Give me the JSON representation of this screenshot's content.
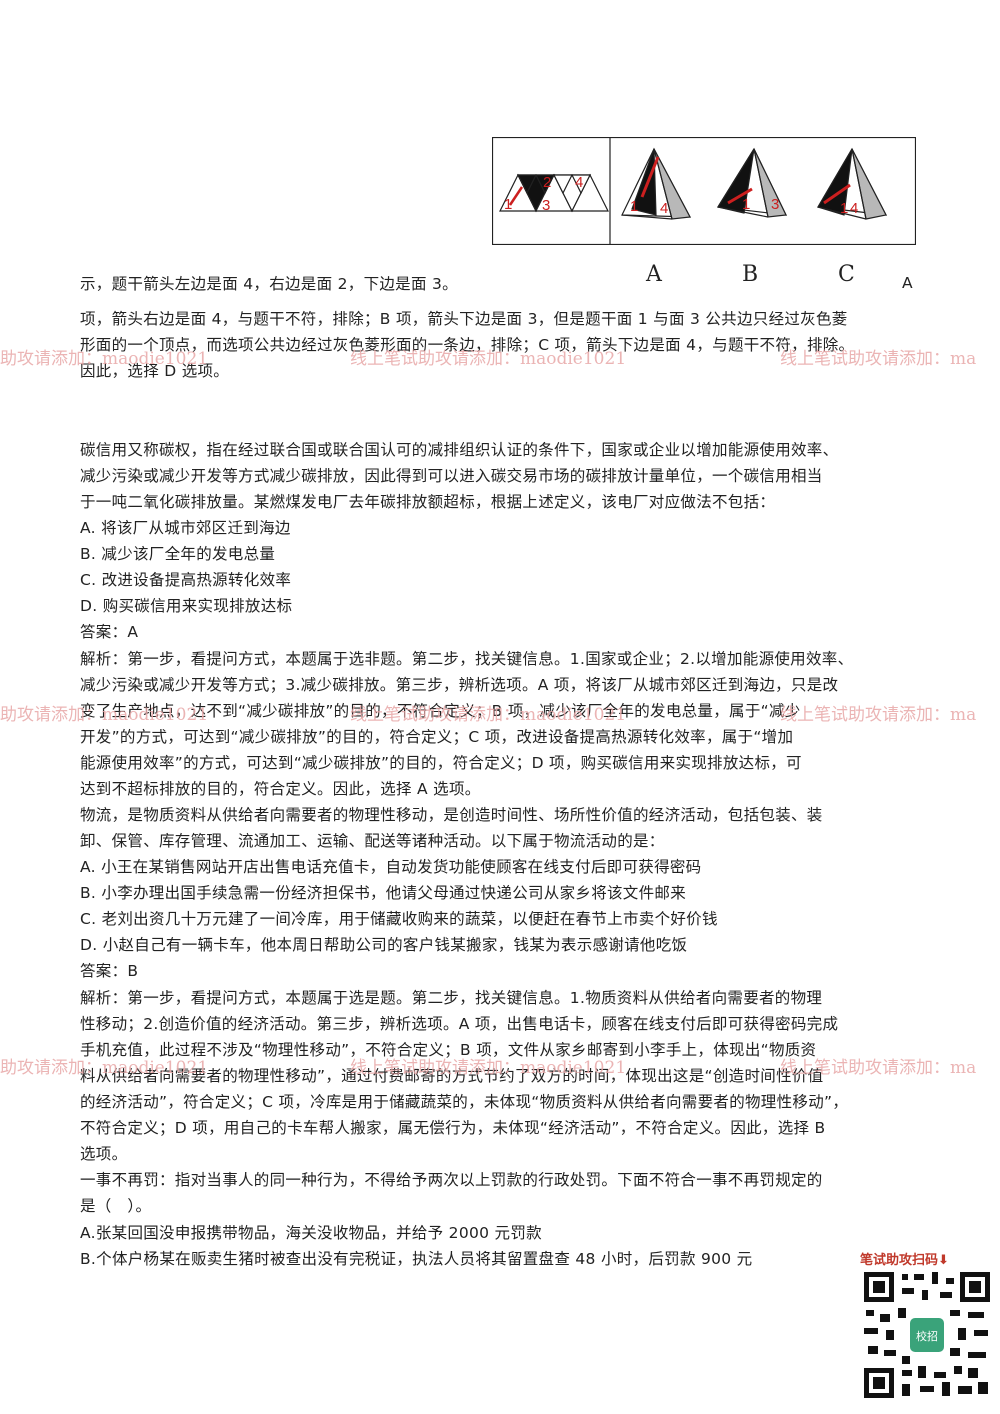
{
  "figure": {
    "option_labels": [
      "A",
      "B",
      "C"
    ],
    "stem_numbers": [
      "1",
      "2",
      "3",
      "4"
    ],
    "opt_a_numbers": [
      "1",
      "4"
    ],
    "opt_b_numbers": [
      "1",
      "3"
    ],
    "opt_c_numbers": [
      "1",
      "4"
    ]
  },
  "trailing_a": "A",
  "lines": [
    "示，题干箭头左边是面 4，右边是面 2，下边是面 3。",
    "项，箭头右边是面 4，与题干不符，排除；B 项，箭头下边是面 3，但是题干面 1 与面 3 公共边只经过灰色菱",
    "形面的一个顶点，而选项公共边经过灰色菱形面的一条边，排除；C 项，箭头下边是面 4，与题干不符，排除。",
    "因此，选择 D 选项。",
    "碳信用又称碳权，指在经过联合国或联合国认可的减排组织认证的条件下，国家或企业以增加能源使用效率、",
    "减少污染或减少开发等方式减少碳排放，因此得到可以进入碳交易市场的碳排放计量单位，一个碳信用相当",
    "于一吨二氧化碳排放量。某燃煤发电厂去年碳排放额超标，根据上述定义，该电厂对应做法不包括：",
    "A. 将该厂从城市郊区迁到海边",
    "B. 减少该厂全年的发电总量",
    "C. 改进设备提高热源转化效率",
    "D. 购买碳信用来实现排放达标",
    "答案：A",
    "解析：第一步，看提问方式，本题属于选非题。第二步，找关键信息。1.国家或企业；2.以增加能源使用效率、",
    "减少污染或减少开发等方式；3.减少碳排放。第三步，辨析选项。A 项，将该厂从城市郊区迁到海边，只是改",
    "变了生产地点，达不到“减少碳排放”的目的，不符合定义；B 项，减少该厂全年的发电总量，属于“减少",
    "开发”的方式，可达到“减少碳排放”的目的，符合定义；C 项，改进设备提高热源转化效率，属于“增加",
    "能源使用效率”的方式，可达到“减少碳排放”的目的，符合定义；D 项，购买碳信用来实现排放达标，可",
    "达到不超标排放的目的，符合定义。因此，选择 A 选项。",
    "物流，是物质资料从供给者向需要者的物理性移动，是创造时间性、场所性价值的经济活动，包括包装、装",
    "卸、保管、库存管理、流通加工、运输、配送等诸种活动。以下属于物流活动的是：",
    "A. 小王在某销售网站开店出售电话充值卡，自动发货功能使顾客在线支付后即可获得密码",
    "B. 小李办理出国手续急需一份经济担保书，他请父母通过快递公司从家乡将该文件邮来",
    "C. 老刘出资几十万元建了一间冷库，用于储藏收购来的蔬菜，以便赶在春节上市卖个好价钱",
    "D. 小赵自己有一辆卡车，他本周日帮助公司的客户钱某搬家，钱某为表示感谢请他吃饭",
    "答案：B",
    "解析：第一步，看提问方式，本题属于选是题。第二步，找关键信息。1.物质资料从供给者向需要者的物理",
    "性移动；2.创造价值的经济活动。第三步，辨析选项。A 项，出售电话卡，顾客在线支付后即可获得密码完成",
    "手机充值，此过程不涉及“物理性移动”，不符合定义；B 项，文件从家乡邮寄到小李手上，体现出“物质资",
    "料从供给者向需要者的物理性移动”，通过付费邮寄的方式节约了双方的时间，体现出这是“创造时间性价值",
    "的经济活动”，符合定义；C 项，冷库是用于储藏蔬菜的，未体现“物质资料从供给者向需要者的物理性移动”，",
    "不符合定义；D 项，用自己的卡车帮人搬家，属无偿行为，未体现“经济活动”，不符合定义。因此，选择 B",
    "选项。",
    "一事不再罚：指对当事人的同一种行为，不得给予两次以上罚款的行政处罚。下面不符合一事不再罚规定的",
    "是（　）。",
    "A.张某回国没申报携带物品，海关没收物品，并给予 2000 元罚款",
    "B.个体户杨某在贩卖生猪时被查出没有完税证，执法人员将其留置盘查 48 小时，后罚款 900 元"
  ],
  "watermarks": [
    "助攻请添加：maodie1021",
    "线上笔试助攻请添加：maodie1021",
    "线上笔试助攻请添加：ma"
  ],
  "qr": {
    "title": "笔试助攻扫码⬇",
    "center_text": "校招"
  },
  "colors": {
    "watermark": "#e8a8a8",
    "triangle_black": "#111111",
    "triangle_gray": "#b8b8b8",
    "arrow_red": "#cc1f1f"
  }
}
